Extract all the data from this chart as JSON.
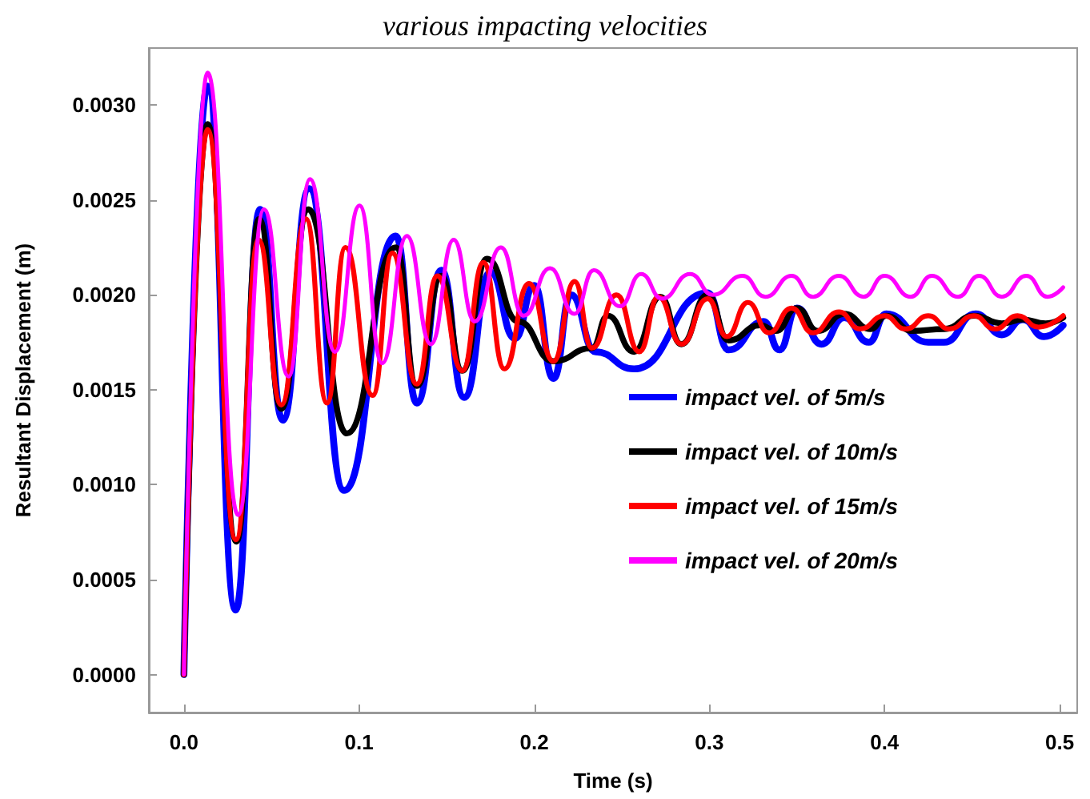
{
  "chart_data": {
    "type": "line",
    "title": "various impacting velocities",
    "xlabel": "Time (s)",
    "ylabel": "Resultant Displacement (m)",
    "xlim": [
      -0.02,
      0.51
    ],
    "ylim": [
      -0.0002,
      0.0033
    ],
    "xticks": [
      {
        "value": 0,
        "label": "0.0"
      },
      {
        "value": 0.1,
        "label": "0.1"
      },
      {
        "value": 0.2,
        "label": "0.2"
      },
      {
        "value": 0.3,
        "label": "0.3"
      },
      {
        "value": 0.4,
        "label": "0.4"
      },
      {
        "value": 0.5,
        "label": "0.5"
      }
    ],
    "yticks": [
      {
        "value": 0,
        "label": "0.0000"
      },
      {
        "value": 0.0005,
        "label": "0.0005"
      },
      {
        "value": 0.001,
        "label": "0.0010"
      },
      {
        "value": 0.0015,
        "label": "0.0015"
      },
      {
        "value": 0.002,
        "label": "0.0020"
      },
      {
        "value": 0.0025,
        "label": "0.0025"
      },
      {
        "value": 0.003,
        "label": "0.0030"
      }
    ],
    "grid": false,
    "legend": "right",
    "marker": "none",
    "line_style": "solid",
    "series": [
      {
        "name": "impact vel. of 5m/s",
        "color": "#0000ff",
        "x": [
          0,
          0.0135,
          0.0295,
          0.0435,
          0.0565,
          0.0715,
          0.0915,
          0.121,
          0.133,
          0.147,
          0.16,
          0.175,
          0.189,
          0.2,
          0.211,
          0.221,
          0.235,
          0.257,
          0.299,
          0.311,
          0.331,
          0.34,
          0.35,
          0.364,
          0.377,
          0.391,
          0.401,
          0.425,
          0.434,
          0.452,
          0.467,
          0.479,
          0.491,
          0.502
        ],
        "values": [
          0,
          0.0031,
          0.00034,
          0.00245,
          0.00134,
          0.00256,
          0.00097,
          0.00231,
          0.00143,
          0.00213,
          0.00146,
          0.00212,
          0.00177,
          0.00205,
          0.00156,
          0.002,
          0.0017,
          0.00161,
          0.00201,
          0.00171,
          0.00186,
          0.00171,
          0.00193,
          0.00174,
          0.00188,
          0.00175,
          0.0019,
          0.00175,
          0.00175,
          0.0019,
          0.00179,
          0.00187,
          0.00178,
          0.00184
        ]
      },
      {
        "name": "impact vel. of 10m/s",
        "color": "#000000",
        "x": [
          0,
          0.0135,
          0.03,
          0.043,
          0.0556,
          0.071,
          0.093,
          0.121,
          0.133,
          0.147,
          0.159,
          0.173,
          0.191,
          0.211,
          0.233,
          0.242,
          0.257,
          0.272,
          0.284,
          0.299,
          0.311,
          0.329,
          0.338,
          0.35,
          0.362,
          0.377,
          0.392,
          0.401,
          0.416,
          0.434,
          0.451,
          0.467,
          0.479,
          0.492,
          0.502
        ],
        "values": [
          0,
          0.0029,
          0.0007,
          0.0024,
          0.0014,
          0.00245,
          0.00127,
          0.00225,
          0.00152,
          0.0021,
          0.0016,
          0.00219,
          0.00186,
          0.00165,
          0.00172,
          0.00189,
          0.0017,
          0.00199,
          0.00174,
          0.002,
          0.00176,
          0.00184,
          0.00181,
          0.00193,
          0.00181,
          0.0019,
          0.00182,
          0.00189,
          0.00181,
          0.00182,
          0.00189,
          0.00185,
          0.00187,
          0.00185,
          0.00188
        ]
      },
      {
        "name": "impact vel. of 15m/s",
        "color": "#ff0000",
        "x": [
          0,
          0.0135,
          0.0297,
          0.0426,
          0.0556,
          0.0697,
          0.0817,
          0.0922,
          0.1078,
          0.119,
          0.133,
          0.1447,
          0.159,
          0.171,
          0.183,
          0.197,
          0.211,
          0.223,
          0.233,
          0.247,
          0.26,
          0.271,
          0.284,
          0.299,
          0.31,
          0.322,
          0.334,
          0.347,
          0.359,
          0.374,
          0.386,
          0.4,
          0.412,
          0.425,
          0.437,
          0.451,
          0.463,
          0.476,
          0.488,
          0.502
        ],
        "values": [
          0,
          0.00287,
          0.00071,
          0.00229,
          0.00142,
          0.0024,
          0.00143,
          0.00225,
          0.00147,
          0.00222,
          0.00153,
          0.0021,
          0.0016,
          0.00217,
          0.00161,
          0.00206,
          0.00165,
          0.00207,
          0.00172,
          0.002,
          0.0017,
          0.00199,
          0.00174,
          0.00198,
          0.00178,
          0.00196,
          0.0018,
          0.00193,
          0.0018,
          0.00191,
          0.00182,
          0.00189,
          0.00182,
          0.00189,
          0.00182,
          0.00189,
          0.00182,
          0.00189,
          0.00183,
          0.00189
        ]
      },
      {
        "name": "impact vel. of 20m/s",
        "color": "#ff00ff",
        "x": [
          0,
          0.0135,
          0.031,
          0.0457,
          0.0598,
          0.072,
          0.0862,
          0.1003,
          0.1132,
          0.1273,
          0.141,
          0.154,
          0.166,
          0.181,
          0.194,
          0.209,
          0.223,
          0.234,
          0.249,
          0.261,
          0.273,
          0.289,
          0.302,
          0.319,
          0.332,
          0.347,
          0.359,
          0.374,
          0.388,
          0.4,
          0.415,
          0.427,
          0.442,
          0.454,
          0.467,
          0.481,
          0.493,
          0.502
        ],
        "values": [
          0,
          0.00317,
          0.00084,
          0.00245,
          0.00157,
          0.00261,
          0.0017,
          0.00247,
          0.00164,
          0.00231,
          0.00174,
          0.00229,
          0.00186,
          0.00225,
          0.00189,
          0.00214,
          0.0019,
          0.00213,
          0.00194,
          0.00211,
          0.00198,
          0.00211,
          0.002,
          0.0021,
          0.00199,
          0.0021,
          0.00199,
          0.0021,
          0.00199,
          0.0021,
          0.00199,
          0.0021,
          0.00199,
          0.0021,
          0.00199,
          0.0021,
          0.00199,
          0.00204
        ]
      }
    ]
  }
}
